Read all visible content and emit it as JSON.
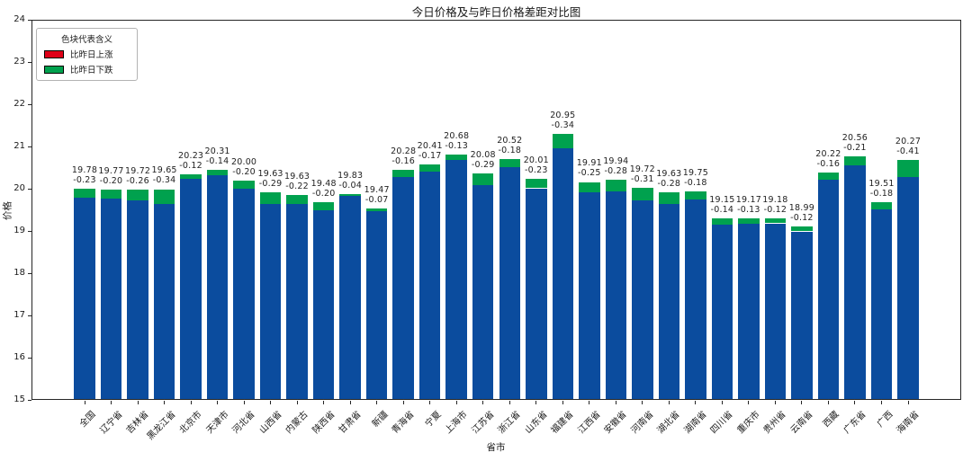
{
  "legend": {
    "title": "色块代表含义",
    "items": [
      {
        "label": "比昨日上涨",
        "color": "#df0018",
        "meaning": "price-up-vs-yesterday"
      },
      {
        "label": "比昨日下跌",
        "color": "#00a14e",
        "meaning": "price-down-vs-yesterday"
      }
    ]
  },
  "colors": {
    "today_bar": "#0b4c9e",
    "drop_segment": "#00a14e",
    "rise_color": "#df0018",
    "axis": "#262626",
    "background": "#ffffff"
  },
  "chart_data": {
    "type": "bar",
    "stacked": true,
    "title": "今日价格及与昨日价格差距对比图",
    "xlabel": "省市",
    "ylabel": "价格",
    "ylim": [
      15,
      24
    ],
    "yticks": [
      15,
      16,
      17,
      18,
      19,
      20,
      21,
      22,
      23,
      24
    ],
    "grid": false,
    "legend_position": "upper left",
    "categories": [
      "全国",
      "辽宁省",
      "吉林省",
      "黑龙江省",
      "北京市",
      "天津市",
      "河北省",
      "山西省",
      "内蒙古",
      "陕西省",
      "甘肃省",
      "新疆",
      "青海省",
      "宁夏",
      "上海市",
      "江苏省",
      "浙江省",
      "山东省",
      "福建省",
      "江西省",
      "安徽省",
      "河南省",
      "湖北省",
      "湖南省",
      "四川省",
      "重庆市",
      "贵州省",
      "云南省",
      "西藏",
      "广东省",
      "广西",
      "海南省"
    ],
    "series": [
      {
        "name": "今日价格",
        "color": "#0b4c9e",
        "values": [
          19.78,
          19.77,
          19.72,
          19.65,
          20.23,
          20.31,
          20.0,
          19.63,
          19.63,
          19.48,
          19.83,
          19.47,
          20.28,
          20.41,
          20.68,
          20.08,
          20.52,
          20.01,
          20.95,
          19.91,
          19.94,
          19.72,
          19.63,
          19.75,
          19.15,
          19.17,
          19.18,
          18.99,
          20.22,
          20.56,
          19.51,
          20.27
        ]
      },
      {
        "name": "比昨日下跌",
        "color": "#00a14e",
        "values": [
          -0.23,
          -0.2,
          -0.26,
          -0.34,
          -0.12,
          -0.14,
          -0.2,
          -0.29,
          -0.22,
          -0.2,
          -0.04,
          -0.07,
          -0.16,
          -0.17,
          -0.13,
          -0.29,
          -0.18,
          -0.23,
          -0.34,
          -0.25,
          -0.28,
          -0.31,
          -0.28,
          -0.18,
          -0.14,
          -0.13,
          -0.12,
          -0.12,
          -0.16,
          -0.21,
          -0.18,
          -0.41
        ]
      }
    ]
  }
}
